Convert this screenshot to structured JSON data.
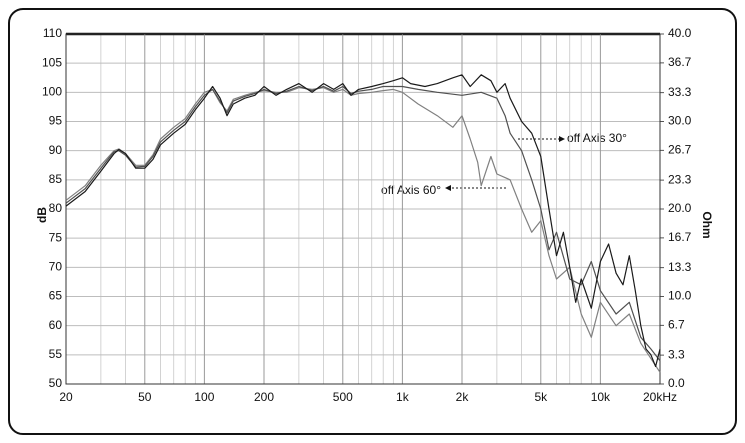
{
  "chart_data": {
    "type": "line",
    "y_label": "dB",
    "y2_label": "Ohm",
    "xscale": "log",
    "xlim": [
      20,
      20000
    ],
    "xticks": [
      20,
      50,
      100,
      200,
      500,
      {
        "value": 1000,
        "label": "1k"
      },
      {
        "value": 2000,
        "label": "2k"
      },
      {
        "value": 5000,
        "label": "5k"
      },
      {
        "value": 10000,
        "label": "10k"
      },
      {
        "value": 20000,
        "label": "20kHz"
      }
    ],
    "x_minor_grid": [
      30,
      40,
      60,
      70,
      80,
      90,
      300,
      400,
      600,
      700,
      800,
      900,
      3000,
      4000,
      6000,
      7000,
      8000,
      9000
    ],
    "ylim": [
      50,
      110
    ],
    "yticks": [
      50,
      55,
      60,
      65,
      70,
      75,
      80,
      85,
      90,
      95,
      100,
      105,
      110
    ],
    "y2lim": [
      0,
      40
    ],
    "y2ticks": [
      {
        "value": 0,
        "label": "0.0"
      },
      3.3,
      6.7,
      {
        "value": 10,
        "label": "10.0"
      },
      13.3,
      16.7,
      {
        "value": 20,
        "label": "20.0"
      },
      23.3,
      26.7,
      {
        "value": 30,
        "label": "30.0"
      },
      33.3,
      36.7,
      {
        "value": 40,
        "label": "40.0"
      }
    ],
    "grid": true,
    "series": [
      {
        "color": "#1a1a1a",
        "x": [
          20,
          25,
          30,
          35,
          37,
          40,
          45,
          50,
          55,
          60,
          70,
          80,
          90,
          100,
          110,
          120,
          130,
          140,
          160,
          180,
          200,
          230,
          260,
          300,
          350,
          400,
          450,
          500,
          550,
          600,
          700,
          800,
          900,
          1000,
          1100,
          1300,
          1500,
          1800,
          2000,
          2200,
          2500,
          2800,
          3000,
          3300,
          3500,
          4000,
          4500,
          5000,
          5500,
          6000,
          6500,
          7000,
          7500,
          8000,
          9000,
          10000,
          11000,
          12000,
          13000,
          14000,
          15000,
          16000,
          17000,
          18000,
          19000,
          20000
        ],
        "values": [
          80.5,
          83,
          86.5,
          89.5,
          90.2,
          89.5,
          87,
          87,
          88.5,
          91,
          93,
          94.5,
          97,
          99,
          101,
          99,
          96,
          98,
          99,
          99.5,
          101,
          99.5,
          100.5,
          101.5,
          100,
          101.5,
          100.5,
          101.5,
          99.5,
          100.5,
          101,
          101.5,
          102,
          102.5,
          101.5,
          101,
          101.5,
          102.5,
          103,
          101,
          103,
          102,
          100,
          101.5,
          99,
          95,
          93,
          89,
          80,
          72,
          76,
          70,
          64,
          68,
          63,
          71,
          74,
          69,
          67,
          72,
          66,
          60,
          56,
          55,
          53,
          56
        ]
      },
      {
        "color": "#505050",
        "x": [
          20,
          25,
          30,
          35,
          37,
          40,
          45,
          50,
          55,
          60,
          70,
          80,
          90,
          100,
          110,
          120,
          130,
          140,
          160,
          180,
          200,
          230,
          260,
          300,
          350,
          400,
          450,
          500,
          550,
          600,
          700,
          800,
          900,
          1000,
          1200,
          1500,
          2000,
          2500,
          3000,
          3300,
          3500,
          4000,
          4500,
          5000,
          5500,
          6000,
          7000,
          8000,
          9000,
          10000,
          12000,
          14000,
          16000,
          18000,
          20000
        ],
        "values": [
          81,
          83.5,
          87,
          89.8,
          90,
          89.2,
          87.2,
          87.3,
          89,
          91.5,
          93.5,
          95,
          97.5,
          99.5,
          100.5,
          98.5,
          96.5,
          98.5,
          99.3,
          99.8,
          100.5,
          99.8,
          100.2,
          101,
          100.3,
          101,
          100.2,
          101,
          99.8,
          100.2,
          100.5,
          101,
          101,
          101,
          100.5,
          100,
          99.5,
          100,
          99,
          96,
          93,
          90,
          85,
          80,
          73,
          76,
          68,
          67,
          71,
          66,
          62,
          64,
          58,
          56,
          54
        ]
      },
      {
        "color": "#808080",
        "x": [
          20,
          25,
          30,
          35,
          37,
          40,
          45,
          50,
          55,
          60,
          70,
          80,
          90,
          100,
          110,
          120,
          130,
          140,
          160,
          180,
          200,
          230,
          260,
          300,
          350,
          400,
          450,
          500,
          550,
          600,
          700,
          800,
          900,
          1000,
          1200,
          1500,
          1800,
          2000,
          2200,
          2400,
          2500,
          2800,
          3000,
          3500,
          4000,
          4500,
          5000,
          5500,
          6000,
          7000,
          8000,
          9000,
          10000,
          12000,
          14000,
          16000,
          20000
        ],
        "values": [
          81.5,
          84,
          87.5,
          90,
          90.3,
          89.5,
          87.5,
          87.5,
          89.3,
          92,
          94,
          95.5,
          98,
          100,
          100.5,
          98.2,
          96.8,
          98.8,
          99.5,
          100,
          100.3,
          100,
          100,
          100.8,
          100.5,
          100.8,
          100,
          100.5,
          99.5,
          99.8,
          100,
          100.3,
          100.5,
          100,
          98,
          96,
          94,
          96,
          92,
          88,
          84,
          89,
          86,
          85,
          80,
          76,
          78,
          72,
          68,
          70,
          62,
          58,
          64,
          60,
          62,
          57,
          52
        ]
      }
    ],
    "annotations": [
      "off Axis 30°",
      "off Axis 60°"
    ]
  }
}
